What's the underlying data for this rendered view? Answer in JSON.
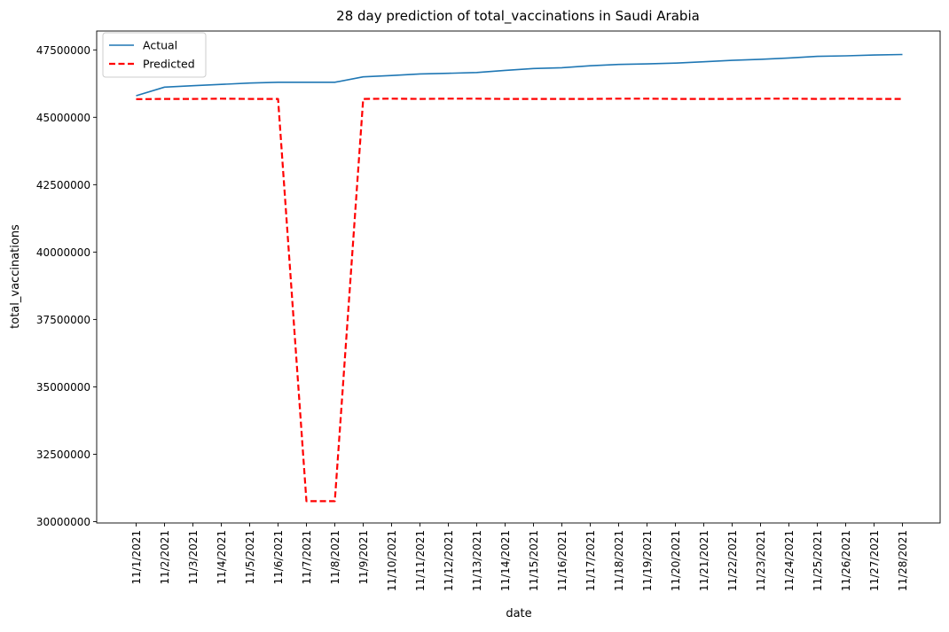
{
  "chart_data": {
    "type": "line",
    "title": "28 day prediction of total_vaccinations in Saudi Arabia",
    "xlabel": "date",
    "ylabel": "total_vaccinations",
    "x": [
      "11/1/2021",
      "11/2/2021",
      "11/3/2021",
      "11/4/2021",
      "11/5/2021",
      "11/6/2021",
      "11/7/2021",
      "11/8/2021",
      "11/9/2021",
      "11/10/2021",
      "11/11/2021",
      "11/12/2021",
      "11/13/2021",
      "11/14/2021",
      "11/15/2021",
      "11/16/2021",
      "11/17/2021",
      "11/18/2021",
      "11/19/2021",
      "11/20/2021",
      "11/21/2021",
      "11/22/2021",
      "11/23/2021",
      "11/24/2021",
      "11/25/2021",
      "11/26/2021",
      "11/27/2021",
      "11/28/2021"
    ],
    "yticks": [
      30000000,
      32500000,
      35000000,
      37500000,
      40000000,
      42500000,
      45000000,
      47500000
    ],
    "ylim": [
      29950000,
      48200000
    ],
    "grid": false,
    "legend_position": "top-left",
    "series": [
      {
        "name": "Actual",
        "color": "#1f77b4",
        "style": "solid",
        "values": [
          45800000,
          46120000,
          46170000,
          46220000,
          46270000,
          46300000,
          46300000,
          46300000,
          46500000,
          46550000,
          46610000,
          46630000,
          46660000,
          46740000,
          46810000,
          46840000,
          46910000,
          46960000,
          46980000,
          47010000,
          47060000,
          47110000,
          47150000,
          47200000,
          47260000,
          47280000,
          47310000,
          47330000
        ]
      },
      {
        "name": "Predicted",
        "color": "#ff0000",
        "style": "dashed",
        "values": [
          45670000,
          45680000,
          45680000,
          45690000,
          45680000,
          45680000,
          30760000,
          30760000,
          45680000,
          45690000,
          45680000,
          45690000,
          45690000,
          45680000,
          45680000,
          45680000,
          45680000,
          45690000,
          45690000,
          45680000,
          45680000,
          45680000,
          45690000,
          45690000,
          45680000,
          45690000,
          45680000,
          45680000
        ]
      }
    ]
  }
}
